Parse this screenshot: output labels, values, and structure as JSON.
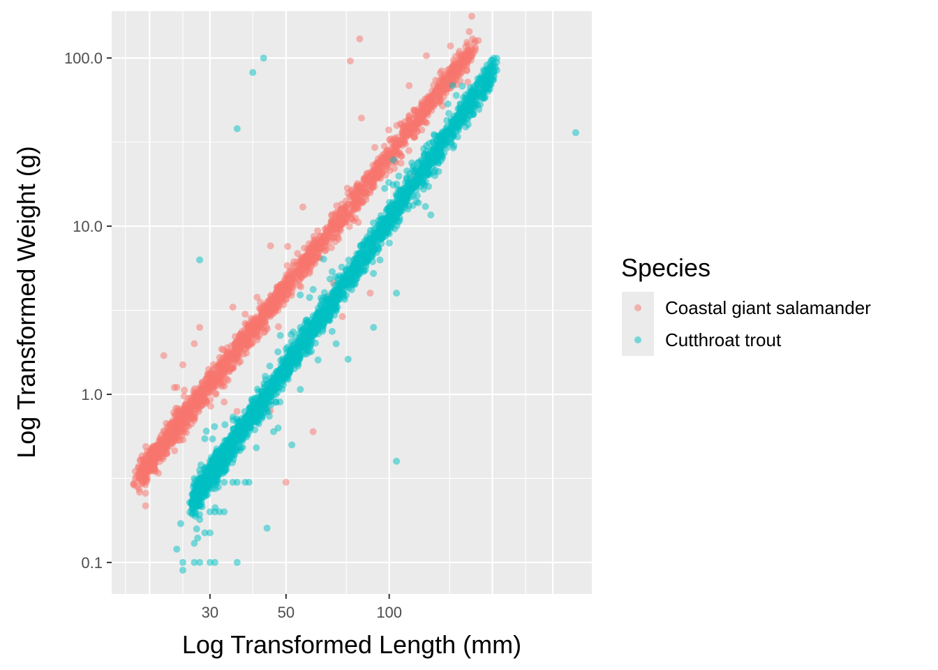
{
  "chart_data": {
    "type": "scatter",
    "title": "",
    "xlabel": "Log Transformed Length (mm)",
    "ylabel": "Log Transformed Weight (g)",
    "x_scale": "log10",
    "y_scale": "log10",
    "xlim": [
      15.5,
      390
    ],
    "ylim": [
      0.065,
      190
    ],
    "x_ticks": [
      30,
      50,
      100
    ],
    "x_tick_labels": [
      "30",
      "50",
      "100"
    ],
    "y_ticks": [
      0.1,
      1,
      10,
      100
    ],
    "y_tick_labels": [
      "0.1",
      "1.0",
      "10.0",
      "100.0"
    ],
    "grid": true,
    "point_opacity": 0.5,
    "legend": {
      "title": "Species",
      "placement": "right"
    },
    "series": [
      {
        "name": "Coastal giant salamander",
        "color": "#F8766D",
        "trend": {
          "a": 2.61,
          "b": -3.8,
          "sigma": 0.04,
          "x_min": 19,
          "x_max": 175,
          "n": 2200
        },
        "points": [
          [
            82,
            130
          ],
          [
            77,
            96
          ],
          [
            83,
            44
          ],
          [
            195,
            70
          ],
          [
            175,
            130
          ],
          [
            182,
            127
          ],
          [
            45,
            0.8
          ],
          [
            38,
            3.0
          ],
          [
            35,
            3.3
          ],
          [
            22,
            1.7
          ],
          [
            25,
            1.5
          ],
          [
            50,
            0.3
          ],
          [
            33,
            0.9
          ],
          [
            27,
            2.0
          ],
          [
            28,
            2.5
          ],
          [
            24,
            1.1
          ],
          [
            60,
            0.6
          ],
          [
            88,
            4.0
          ],
          [
            40,
            2.5
          ],
          [
            56,
            13
          ],
          [
            73,
            2.9
          ]
        ]
      },
      {
        "name": "Cutthroat trout",
        "color": "#00BFC4",
        "trend": {
          "a": 2.92,
          "b": -4.8,
          "sigma": 0.045,
          "x_min": 27,
          "x_max": 200,
          "n": 2600
        },
        "points": [
          [
            43,
            100
          ],
          [
            40,
            82
          ],
          [
            36,
            38
          ],
          [
            350,
            36
          ],
          [
            28,
            6.3
          ],
          [
            105,
            0.4
          ],
          [
            44,
            0.16
          ],
          [
            36,
            0.1
          ],
          [
            25,
            0.09
          ],
          [
            24,
            0.12
          ],
          [
            25,
            0.1
          ],
          [
            27,
            0.1
          ],
          [
            28,
            0.1
          ],
          [
            30,
            0.1
          ],
          [
            31,
            0.1
          ],
          [
            27,
            0.13
          ],
          [
            29,
            0.15
          ],
          [
            30,
            0.15
          ],
          [
            27,
            0.2
          ],
          [
            28,
            0.18
          ],
          [
            30,
            0.2
          ],
          [
            31,
            0.2
          ],
          [
            32,
            0.2
          ],
          [
            33,
            0.2
          ],
          [
            29,
            0.3
          ],
          [
            31,
            0.3
          ],
          [
            33,
            0.3
          ],
          [
            35,
            0.3
          ],
          [
            36,
            0.3
          ],
          [
            38,
            0.3
          ],
          [
            39,
            0.3
          ],
          [
            30,
            0.4
          ],
          [
            32,
            0.45
          ],
          [
            34,
            0.5
          ],
          [
            52,
            0.5
          ],
          [
            60,
            4.2
          ],
          [
            55,
            3.9
          ],
          [
            62,
            1.6
          ],
          [
            70,
            2.0
          ],
          [
            100,
            9.0
          ],
          [
            110,
            14
          ],
          [
            105,
            4.0
          ],
          [
            120,
            14
          ],
          [
            90,
            2.5
          ],
          [
            48,
            0.9
          ],
          [
            40,
            0.7
          ],
          [
            46,
            0.6
          ]
        ]
      }
    ]
  }
}
